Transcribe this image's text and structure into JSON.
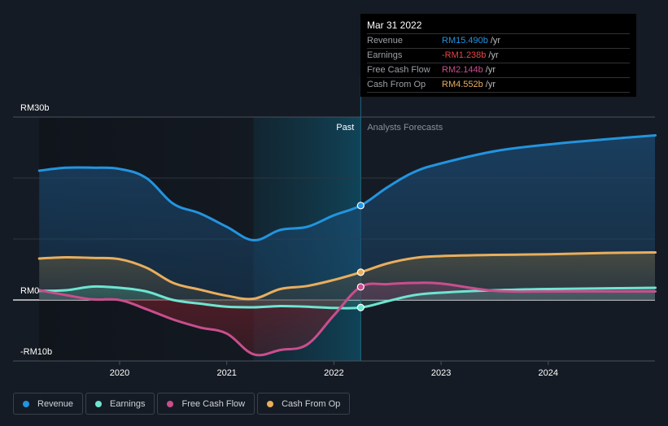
{
  "chart_data": {
    "type": "area",
    "title": "",
    "currency": "RM",
    "y_unit": "b",
    "ylim": [
      -10,
      30
    ],
    "y_ticks": [
      {
        "value": 30,
        "label": "RM30b"
      },
      {
        "value": 0,
        "label": "RM0"
      },
      {
        "value": -10,
        "label": "-RM10b"
      }
    ],
    "y_gridlines": [
      30,
      20,
      10,
      0,
      -10
    ],
    "x_ticks": [
      {
        "value": 2020,
        "label": "2020"
      },
      {
        "value": 2021,
        "label": "2021"
      },
      {
        "value": 2022,
        "label": "2022"
      },
      {
        "value": 2023,
        "label": "2023"
      },
      {
        "value": 2024,
        "label": "2024"
      }
    ],
    "xlim": [
      2019.25,
      2025.0
    ],
    "divider_x": 2022.25,
    "highlight_start_x": 2021.25,
    "region_labels": {
      "past": "Past",
      "forecast": "Analysts Forecasts"
    },
    "series": [
      {
        "name": "Revenue",
        "key": "revenue",
        "color": "#2394df",
        "points": [
          [
            2019.25,
            21.2
          ],
          [
            2019.5,
            21.7
          ],
          [
            2019.75,
            21.7
          ],
          [
            2020.0,
            21.5
          ],
          [
            2020.25,
            20.0
          ],
          [
            2020.5,
            15.8
          ],
          [
            2020.75,
            14.2
          ],
          [
            2021.0,
            12.0
          ],
          [
            2021.25,
            9.8
          ],
          [
            2021.5,
            11.5
          ],
          [
            2021.75,
            12.0
          ],
          [
            2022.0,
            13.9
          ],
          [
            2022.25,
            15.49
          ],
          [
            2022.5,
            18.5
          ],
          [
            2022.75,
            21.0
          ],
          [
            2023.0,
            22.4
          ],
          [
            2023.5,
            24.4
          ],
          [
            2024.0,
            25.5
          ],
          [
            2024.5,
            26.3
          ],
          [
            2025.0,
            27.0
          ]
        ]
      },
      {
        "name": "Earnings",
        "key": "earnings",
        "color": "#6ee5d1",
        "points": [
          [
            2019.25,
            1.5
          ],
          [
            2019.5,
            1.6
          ],
          [
            2019.75,
            2.2
          ],
          [
            2020.0,
            2.0
          ],
          [
            2020.25,
            1.4
          ],
          [
            2020.5,
            0.0
          ],
          [
            2020.75,
            -0.6
          ],
          [
            2021.0,
            -1.1
          ],
          [
            2021.25,
            -1.2
          ],
          [
            2021.5,
            -1.0
          ],
          [
            2021.75,
            -1.1
          ],
          [
            2022.0,
            -1.3
          ],
          [
            2022.25,
            -1.238
          ],
          [
            2022.5,
            -0.2
          ],
          [
            2022.75,
            0.8
          ],
          [
            2023.0,
            1.2
          ],
          [
            2023.5,
            1.6
          ],
          [
            2024.0,
            1.8
          ],
          [
            2024.5,
            1.9
          ],
          [
            2025.0,
            2.0
          ]
        ]
      },
      {
        "name": "Free Cash Flow",
        "key": "fcf",
        "color": "#c94e8d",
        "points": [
          [
            2019.25,
            1.6
          ],
          [
            2019.5,
            0.8
          ],
          [
            2019.75,
            0.1
          ],
          [
            2020.0,
            0.0
          ],
          [
            2020.25,
            -1.5
          ],
          [
            2020.5,
            -3.2
          ],
          [
            2020.75,
            -4.5
          ],
          [
            2021.0,
            -5.5
          ],
          [
            2021.25,
            -8.9
          ],
          [
            2021.5,
            -8.2
          ],
          [
            2021.75,
            -7.3
          ],
          [
            2022.0,
            -2.5
          ],
          [
            2022.25,
            2.144
          ],
          [
            2022.5,
            2.6
          ],
          [
            2022.75,
            2.8
          ],
          [
            2023.0,
            2.7
          ],
          [
            2023.5,
            1.5
          ],
          [
            2024.0,
            1.4
          ],
          [
            2024.5,
            1.4
          ],
          [
            2025.0,
            1.4
          ]
        ]
      },
      {
        "name": "Cash From Op",
        "key": "cfo",
        "color": "#e9ae5d",
        "points": [
          [
            2019.25,
            6.8
          ],
          [
            2019.5,
            7.0
          ],
          [
            2019.75,
            6.9
          ],
          [
            2020.0,
            6.7
          ],
          [
            2020.25,
            5.3
          ],
          [
            2020.5,
            2.8
          ],
          [
            2020.75,
            1.7
          ],
          [
            2021.0,
            0.7
          ],
          [
            2021.25,
            0.2
          ],
          [
            2021.5,
            1.8
          ],
          [
            2021.75,
            2.3
          ],
          [
            2022.0,
            3.3
          ],
          [
            2022.25,
            4.552
          ],
          [
            2022.5,
            6.0
          ],
          [
            2022.75,
            6.9
          ],
          [
            2023.0,
            7.2
          ],
          [
            2023.5,
            7.4
          ],
          [
            2024.0,
            7.5
          ],
          [
            2024.5,
            7.7
          ],
          [
            2025.0,
            7.8
          ]
        ]
      }
    ],
    "tooltip": {
      "date": "Mar 31 2022",
      "x": 2022.25,
      "rows": [
        {
          "label": "Revenue",
          "value": "RM15.490b",
          "unit": "/yr",
          "color": "#2394df"
        },
        {
          "label": "Earnings",
          "value": "-RM1.238b",
          "unit": "/yr",
          "color": "#e84545"
        },
        {
          "label": "Free Cash Flow",
          "value": "RM2.144b",
          "unit": "/yr",
          "color": "#c94e8d"
        },
        {
          "label": "Cash From Op",
          "value": "RM4.552b",
          "unit": "/yr",
          "color": "#e9ae5d"
        }
      ]
    },
    "legend": [
      {
        "label": "Revenue",
        "color": "#2394df"
      },
      {
        "label": "Earnings",
        "color": "#6ee5d1"
      },
      {
        "label": "Free Cash Flow",
        "color": "#c94e8d"
      },
      {
        "label": "Cash From Op",
        "color": "#e9ae5d"
      }
    ],
    "legend_position": "bottom-left"
  }
}
